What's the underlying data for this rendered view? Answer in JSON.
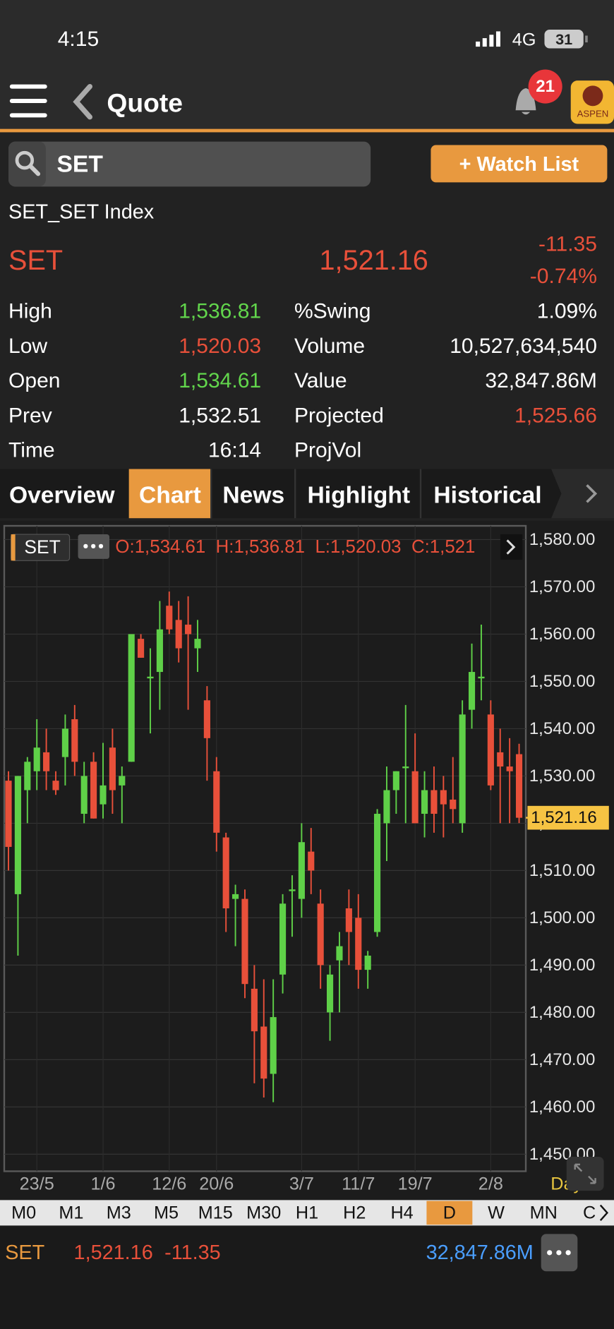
{
  "status_bar": {
    "time": "4:15",
    "network": "4G",
    "battery": "31"
  },
  "header": {
    "title": "Quote",
    "notification_count": "21",
    "logo": "ASPEN"
  },
  "search": {
    "query": "SET",
    "watch_list_button": "+ Watch List"
  },
  "quote": {
    "name": "SET_SET Index",
    "symbol": "SET",
    "last": "1,521.16",
    "change": "-11.35",
    "change_pct": "-0.74%",
    "left": [
      {
        "label": "High",
        "value": "1,536.81"
      },
      {
        "label": "Low",
        "value": "1,520.03"
      },
      {
        "label": "Open",
        "value": "1,534.61"
      },
      {
        "label": "Prev",
        "value": "1,532.51"
      },
      {
        "label": "Time",
        "value": "16:14"
      }
    ],
    "right": [
      {
        "label": "%Swing",
        "value": "1.09%"
      },
      {
        "label": "Volume",
        "value": "10,527,634,540"
      },
      {
        "label": "Value",
        "value": "32,847.86M"
      },
      {
        "label": "Projected",
        "value": "1,525.66"
      },
      {
        "label": "ProjVol"
      }
    ]
  },
  "tabs": [
    "Overview",
    "Chart",
    "News",
    "Highlight",
    "Historical"
  ],
  "active_tab": "Chart",
  "chart_data": {
    "type": "candlestick",
    "symbol": "SET",
    "ohlc_labels": [
      "O:1,534.61",
      "H:1,536.81",
      "L:1,520.03",
      "C:1,521"
    ],
    "categories": [
      null,
      null,
      null,
      "23/5",
      null,
      null,
      null,
      null,
      null,
      null,
      "1/6",
      null,
      null,
      null,
      null,
      null,
      null,
      "12/6",
      null,
      null,
      null,
      null,
      "20/6",
      null,
      null,
      null,
      null,
      null,
      null,
      null,
      null,
      "3/7",
      null,
      null,
      null,
      null,
      null,
      "11/7",
      null,
      null,
      null,
      null,
      null,
      "19/7",
      null,
      null,
      null,
      null,
      null,
      null,
      null,
      "2/8",
      null,
      null,
      null
    ],
    "open": [
      1529,
      1505,
      1527,
      1531,
      1535,
      1529,
      1534,
      1542,
      1522,
      1533,
      1524,
      1536,
      1528,
      1533,
      1559,
      1551,
      1552,
      1566,
      1563,
      1562,
      1557,
      1546,
      1531,
      1517,
      1504,
      1504,
      1485,
      1477,
      1467,
      1488,
      1506,
      1504,
      1514,
      1503,
      1480,
      1491,
      1502,
      1500,
      1489,
      1497,
      1520,
      1527,
      1532,
      1531,
      1522,
      1527,
      1527,
      1525,
      1520,
      1544,
      1551,
      1543,
      1535,
      1532,
      1534.61
    ],
    "high": [
      1531,
      1530,
      1534,
      1542,
      1540,
      1531,
      1543,
      1545,
      1533,
      1535,
      1537,
      1540,
      1532,
      1560,
      1560,
      1557,
      1567,
      1569,
      1567,
      1568,
      1563,
      1549,
      1534,
      1518,
      1507,
      1506,
      1490,
      1487,
      1487,
      1505,
      1509,
      1520,
      1519,
      1506,
      1490,
      1497,
      1506,
      1505,
      1493,
      1523,
      1532,
      1531,
      1545,
      1539,
      1531,
      1532,
      1530,
      1534,
      1546,
      1558,
      1562,
      1546,
      1540,
      1538,
      1536.81
    ],
    "low": [
      1510,
      1492,
      1520,
      1527,
      1527,
      1526,
      1528,
      1530,
      1520,
      1521,
      1521,
      1522,
      1520,
      1533,
      1555,
      1539,
      1544,
      1560,
      1554,
      1544,
      1552,
      1529,
      1514,
      1497,
      1494,
      1483,
      1465,
      1462,
      1461,
      1484,
      1496,
      1500,
      1505,
      1485,
      1474,
      1480,
      1490,
      1485,
      1485,
      1496,
      1512,
      1522,
      1520,
      1520,
      1517,
      1518,
      1517,
      1520,
      1518,
      1540,
      1546,
      1527,
      1520,
      1520,
      1520.03
    ],
    "close": [
      1515,
      1530,
      1533,
      1536,
      1531,
      1527,
      1540,
      1533,
      1530,
      1521,
      1528,
      1527,
      1530,
      1560,
      1555,
      1551,
      1561,
      1561,
      1557,
      1560,
      1559,
      1538,
      1518,
      1502,
      1505,
      1486,
      1476,
      1466,
      1479,
      1503,
      1506,
      1516,
      1510,
      1490,
      1488,
      1494,
      1497,
      1489,
      1492,
      1522,
      1527,
      1531,
      1532,
      1520,
      1527,
      1522,
      1524,
      1523,
      1543,
      1552,
      1551,
      1528,
      1532,
      1531,
      1521.16
    ],
    "up_color": "#5fd048",
    "down_color": "#e8503a",
    "ylim": [
      1446.4,
      1582.9
    ],
    "yticks": [
      {
        "value": 1580,
        "label": "1,580.00"
      },
      {
        "value": 1570,
        "label": "1,570.00"
      },
      {
        "value": 1560,
        "label": "1,560.00"
      },
      {
        "value": 1550,
        "label": "1,550.00"
      },
      {
        "value": 1540,
        "label": "1,540.00"
      },
      {
        "value": 1530,
        "label": "1,530.00"
      },
      {
        "value": 1520,
        "label": "1,520.00"
      },
      {
        "value": 1510,
        "label": "1,510.00"
      },
      {
        "value": 1500,
        "label": "1,500.00"
      },
      {
        "value": 1490,
        "label": "1,490.00"
      },
      {
        "value": 1480,
        "label": "1,480.00"
      },
      {
        "value": 1470,
        "label": "1,470.00"
      },
      {
        "value": 1460,
        "label": "1,460.00"
      },
      {
        "value": 1450,
        "label": "1,450.00"
      }
    ],
    "grid": true,
    "last_price": {
      "value": 1521.16,
      "label": "1,521.16"
    },
    "period": "Day"
  },
  "timeframes": [
    "M0",
    "M1",
    "M3",
    "M5",
    "M15",
    "M30",
    "H1",
    "H2",
    "H4",
    "D",
    "W",
    "MN",
    "C"
  ],
  "active_timeframe": "D",
  "footer": {
    "symbol": "SET",
    "price": "1,521.16",
    "change": "-11.35",
    "value": "32,847.86M"
  }
}
